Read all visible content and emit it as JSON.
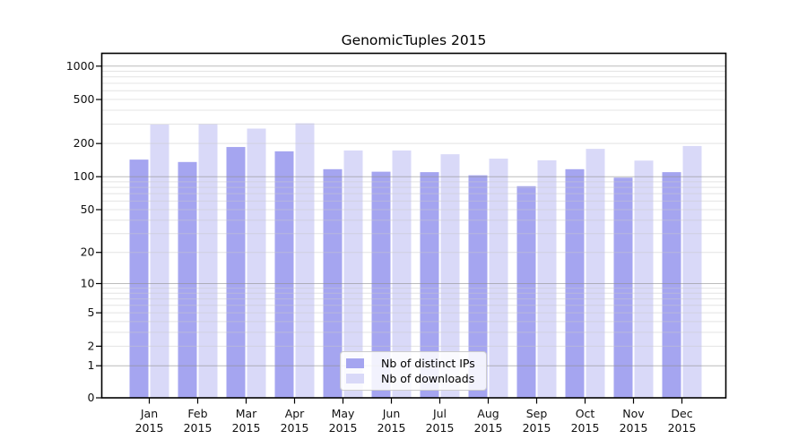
{
  "chart_data": {
    "type": "bar",
    "title": "GenomicTuples 2015",
    "categories": [
      {
        "month": "Jan",
        "year": "2015"
      },
      {
        "month": "Feb",
        "year": "2015"
      },
      {
        "month": "Mar",
        "year": "2015"
      },
      {
        "month": "Apr",
        "year": "2015"
      },
      {
        "month": "May",
        "year": "2015"
      },
      {
        "month": "Jun",
        "year": "2015"
      },
      {
        "month": "Jul",
        "year": "2015"
      },
      {
        "month": "Aug",
        "year": "2015"
      },
      {
        "month": "Sep",
        "year": "2015"
      },
      {
        "month": "Oct",
        "year": "2015"
      },
      {
        "month": "Nov",
        "year": "2015"
      },
      {
        "month": "Dec",
        "year": "2015"
      }
    ],
    "series": [
      {
        "name": "Nb of distinct IPs",
        "color": "#a5a5f0",
        "values": [
          143,
          136,
          186,
          170,
          117,
          111,
          110,
          103,
          82,
          117,
          98,
          110
        ]
      },
      {
        "name": "Nb of downloads",
        "color": "#d9d9f8",
        "values": [
          297,
          300,
          273,
          305,
          173,
          173,
          160,
          146,
          141,
          179,
          140,
          190
        ]
      }
    ],
    "yscale": "log1p",
    "ylim": [
      0,
      1000
    ],
    "yticks": [
      0,
      1,
      2,
      5,
      10,
      20,
      50,
      100,
      200,
      500,
      1000
    ],
    "major_gridlines": [
      1,
      10,
      100,
      1000
    ],
    "minor_gridlines": [
      2,
      3,
      4,
      5,
      6,
      7,
      8,
      9,
      20,
      30,
      40,
      50,
      60,
      70,
      80,
      90,
      200,
      300,
      400,
      500,
      600,
      700,
      800,
      900
    ],
    "grid": true,
    "legend_position": "lower center",
    "xlabel": "",
    "ylabel": ""
  }
}
